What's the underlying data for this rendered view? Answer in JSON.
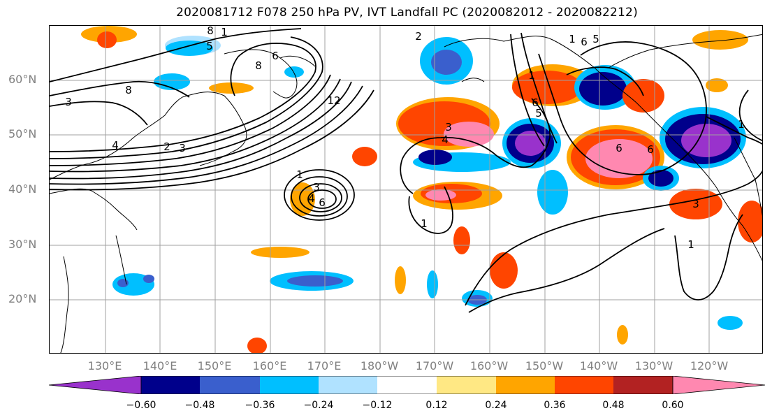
{
  "title": "2020081712 F078 250 hPa PV, IVT Landfall PC (2020082012 - 2020082212)",
  "lat_labels": [
    "60°N",
    "50°N",
    "40°N",
    "30°N",
    "20°N"
  ],
  "lon_labels": [
    "130°E",
    "140°E",
    "150°E",
    "160°E",
    "170°E",
    "180°W",
    "170°W",
    "160°W",
    "150°W",
    "140°W",
    "130°W",
    "120°W"
  ],
  "colorbar": {
    "ticks": [
      "−0.60",
      "−0.48",
      "−0.36",
      "−0.24",
      "−0.12",
      "0.12",
      "0.24",
      "0.36",
      "0.48",
      "0.60"
    ],
    "colors": [
      "#9932cc",
      "#00008b",
      "#3a5fcd",
      "#00bfff",
      "#b0e2ff",
      "#ffffff",
      "#ffe884",
      "#ffa500",
      "#ff4500",
      "#b22222",
      "#ff88b0"
    ]
  },
  "contour_labels": [
    "8",
    "1",
    "2",
    "5",
    "6",
    "8",
    "1",
    "6",
    "5",
    "3",
    "4",
    "8",
    "2",
    "12",
    "1",
    "3",
    "4",
    "6",
    "1",
    "6",
    "3",
    "4",
    "5",
    "6",
    "1",
    "1",
    "3",
    "6",
    "1",
    "3"
  ],
  "colors": {
    "land_outline": "#000000",
    "grid": "#a0a0a0",
    "axis_label": "#808080"
  }
}
